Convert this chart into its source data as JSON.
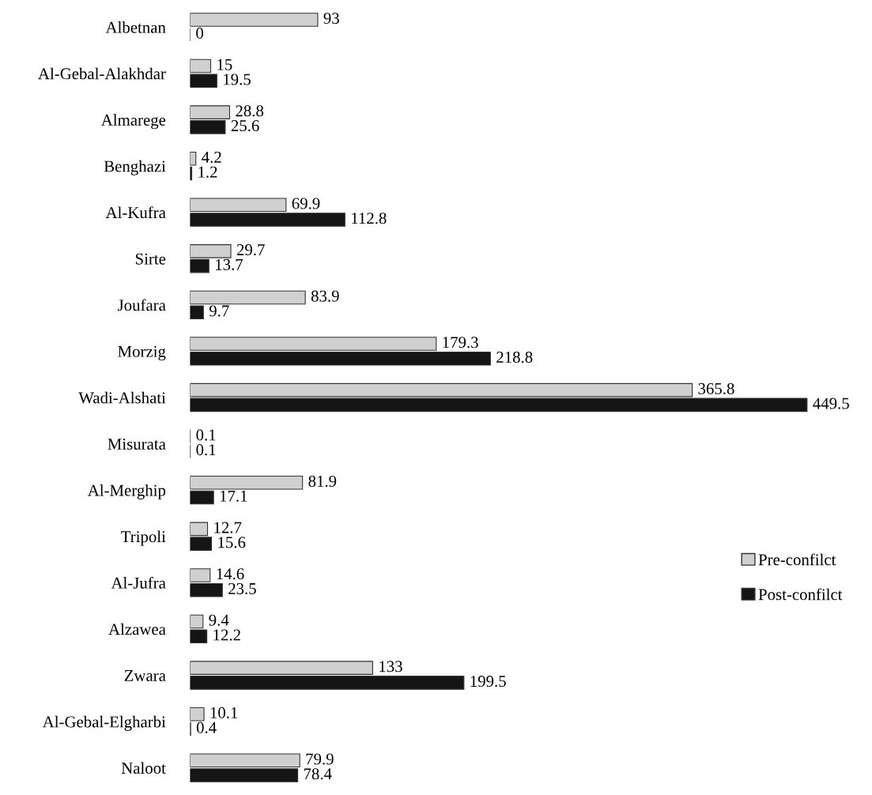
{
  "chart_data": {
    "type": "bar",
    "orientation": "horizontal",
    "categories": [
      "Albetnan",
      "Al-Gebal-Alakhdar",
      "Almarege",
      "Benghazi",
      "Al-Kufra",
      "Sirte",
      "Joufara",
      "Morzig",
      "Wadi-Alshati",
      "Misurata",
      "Al-Merghip",
      "Tripoli",
      "Al-Jufra",
      "Alzawea",
      "Zwara",
      "Al-Gebal-Elgharbi",
      "Naloot"
    ],
    "series": [
      {
        "name": "Pre-confilct",
        "color": "#d0d0d0",
        "values": [
          93,
          15,
          28.8,
          4.2,
          69.9,
          29.7,
          83.9,
          179.3,
          365.8,
          0.1,
          81.9,
          12.7,
          14.6,
          9.4,
          133,
          10.1,
          79.9
        ]
      },
      {
        "name": "Post-confilct",
        "color": "#151515",
        "values": [
          0,
          19.5,
          25.6,
          1.2,
          112.8,
          13.7,
          9.7,
          218.8,
          449.5,
          0.1,
          17.1,
          15.6,
          23.5,
          12.2,
          199.5,
          0.4,
          78.4
        ]
      }
    ],
    "data_labels": true,
    "legend": "right",
    "grid": false
  }
}
